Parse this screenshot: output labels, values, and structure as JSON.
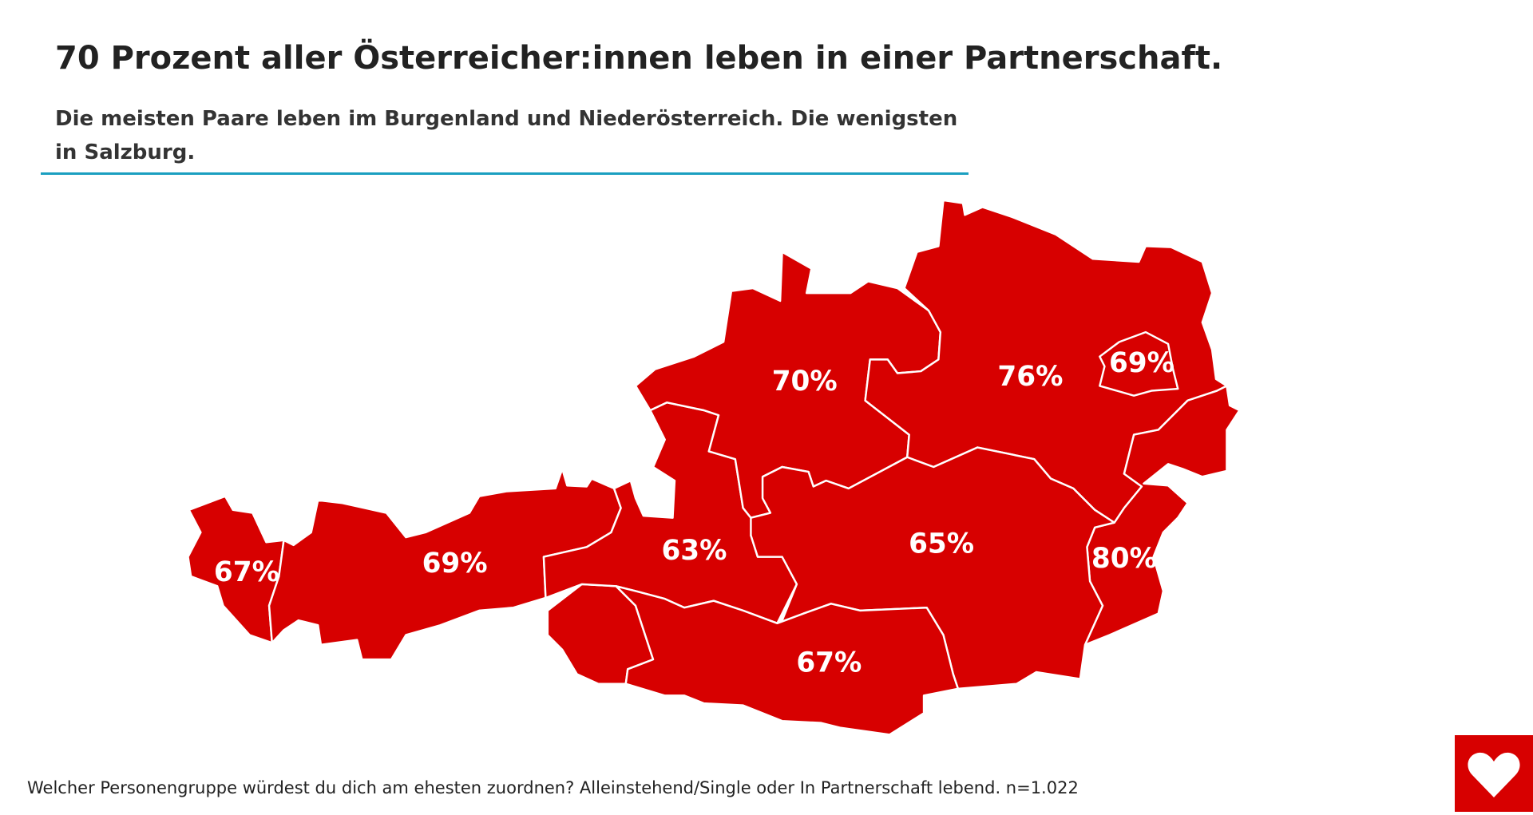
{
  "chart_data": {
    "type": "map",
    "title": "70 Prozent aller Österreicher:innen leben in einer Partnerschaft.",
    "subtitle": "Die meisten Paare leben im Burgenland und Niederösterreich. Die wenigsten in Salzburg.",
    "caption": "Welcher Personengruppe würdest du dich am ehesten zuordnen? Alleinstehend/Single oder In Partnerschaft lebend. n=1.022",
    "color": "#d70000",
    "values": [
      67,
      69,
      63,
      70,
      76,
      69,
      80,
      65,
      67
    ],
    "value_labels": [
      "67%",
      "69%",
      "63%",
      "70%",
      "76%",
      "69%",
      "80%",
      "65%",
      "67%"
    ]
  }
}
